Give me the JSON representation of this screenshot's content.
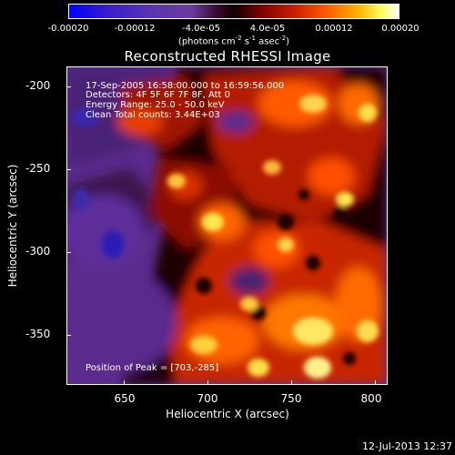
{
  "colorbar": {
    "tick_labels": [
      "-0.00020",
      "-0.00012",
      "-4.0e-05",
      "4.0e-05",
      "0.00012",
      "0.00020"
    ],
    "units_prefix": "(photons cm",
    "units_exp1": "-2",
    "units_mid1": " s",
    "units_exp2": "-1",
    "units_mid2": " asec",
    "units_exp3": "-2",
    "units_suffix": ")",
    "range": [
      -0.0002,
      0.0002
    ]
  },
  "plot": {
    "title": "Reconstructed RHESSI Image",
    "info_lines": [
      "17-Sep-2005 16:58:00.000 to 16:59:56.000",
      "Detectors: 4F 5F 6F 7F 8F, Att 0",
      "Energy Range: 25.0 - 50.0 keV",
      "Clean     Total counts: 3.44E+03"
    ],
    "peak_text": "Position of Peak = [703,-285]"
  },
  "chart_data": {
    "type": "heatmap",
    "title": "Reconstructed RHESSI Image",
    "xlabel": "Heliocentric X (arcsec)",
    "ylabel": "Heliocentric Y (arcsec)",
    "xlim": [
      618,
      810
    ],
    "ylim": [
      -380,
      -189
    ],
    "x_ticks": [
      650,
      700,
      750,
      800
    ],
    "y_ticks": [
      -200,
      -250,
      -300,
      -350
    ],
    "peak": [
      703,
      -285
    ],
    "colorbar_range": [
      -0.0002,
      0.0002
    ]
  },
  "timestamp": "12-Jul-2013 12:37"
}
